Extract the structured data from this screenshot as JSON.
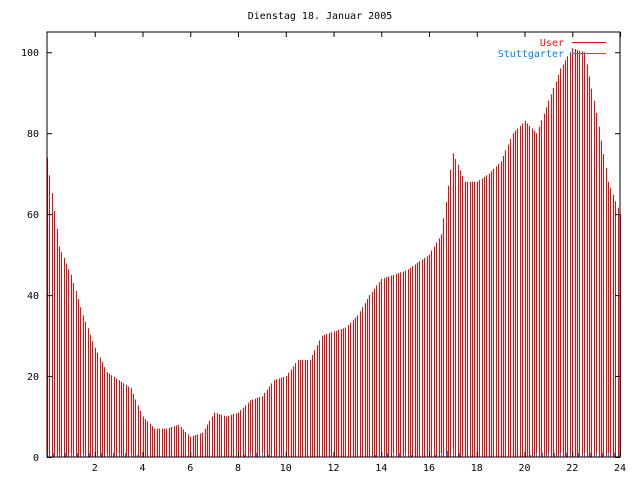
{
  "chart_data": {
    "type": "bar",
    "title": "Dienstag 18. Januar 2005",
    "xlabel": "",
    "ylabel": "",
    "xlim": [
      0,
      24
    ],
    "ylim": [
      0,
      105
    ],
    "x_ticks": [
      2,
      4,
      6,
      8,
      10,
      12,
      14,
      16,
      18,
      20,
      22,
      24
    ],
    "y_ticks": [
      0,
      20,
      40,
      60,
      80,
      100
    ],
    "grid": false,
    "legend_position": "top-right",
    "series": [
      {
        "name": "User",
        "color": "#ff0000",
        "style": "impulses",
        "x": [
          0,
          0.5,
          1,
          1.5,
          2,
          2.5,
          3,
          3.5,
          4,
          4.5,
          5,
          5.5,
          6,
          6.5,
          7,
          7.5,
          8,
          8.5,
          9,
          9.5,
          10,
          10.5,
          11,
          11.5,
          12,
          12.5,
          13,
          13.5,
          14,
          14.5,
          15,
          15.5,
          16,
          16.5,
          17,
          17.5,
          18,
          18.5,
          19,
          19.5,
          20,
          20.5,
          21,
          21.5,
          22,
          22.5,
          23,
          23.5,
          24
        ],
        "values": [
          74,
          52,
          45,
          35,
          27,
          21,
          19,
          17,
          10,
          7,
          7,
          8,
          5,
          6,
          11,
          10,
          11,
          14,
          15,
          19,
          20,
          24,
          24,
          30,
          31,
          32,
          35,
          40,
          44,
          45,
          46,
          48,
          50,
          55,
          75,
          68,
          68,
          70,
          73,
          80,
          83,
          80,
          88,
          96,
          101,
          100,
          85,
          68,
          60
        ]
      },
      {
        "name": "Stuttgarter",
        "color": "#0080ff",
        "style": "impulses",
        "x": [
          0,
          0.5,
          1,
          1.5,
          2,
          2.5,
          3,
          3.5,
          4,
          4.5,
          5,
          5.5,
          6,
          6.5,
          7,
          7.5,
          8,
          8.5,
          9,
          9.5,
          10,
          10.5,
          11,
          11.5,
          12,
          12.5,
          13,
          13.5,
          14,
          14.5,
          15,
          15.5,
          16,
          16.5,
          17,
          17.5,
          18,
          18.5,
          19,
          19.5,
          20,
          20.5,
          21,
          21.5,
          22,
          22.5,
          23,
          23.5,
          24
        ],
        "values": [
          1,
          1,
          1,
          1,
          1,
          1,
          1,
          1,
          0,
          0,
          0,
          0,
          0,
          0,
          0,
          0,
          0,
          1,
          1,
          0,
          0,
          0,
          0,
          0,
          0,
          0,
          0,
          0,
          1,
          1,
          1,
          0,
          0,
          1,
          2,
          0,
          0,
          0,
          0,
          0,
          0,
          1,
          1,
          1,
          1,
          1,
          1,
          1,
          1
        ]
      }
    ]
  }
}
